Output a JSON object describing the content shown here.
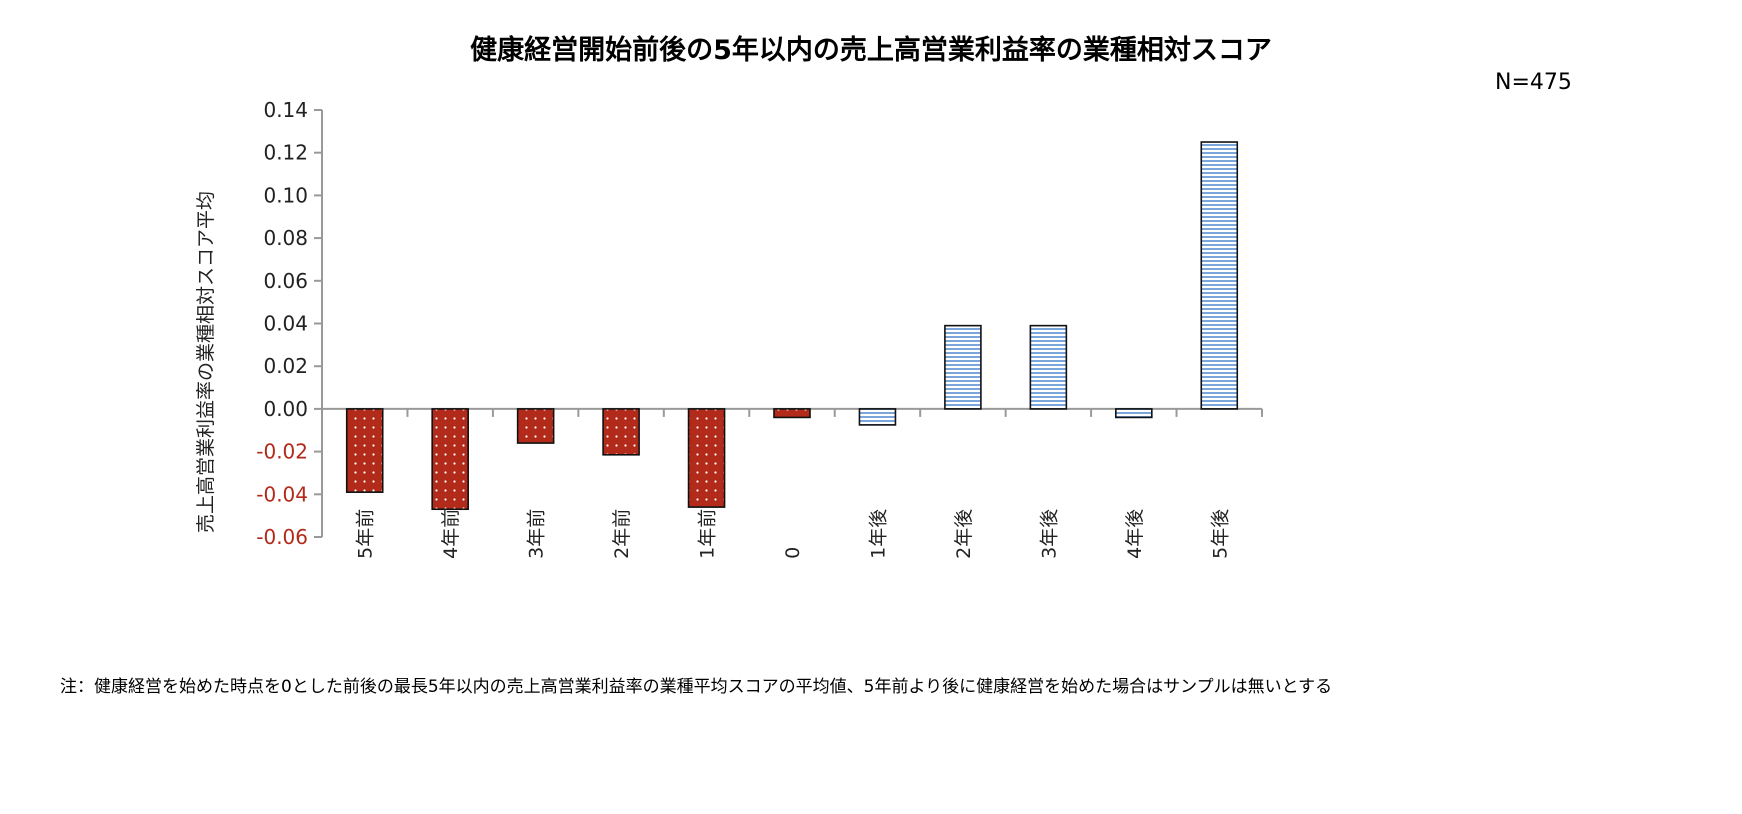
{
  "chart_data": {
    "type": "bar",
    "title": "健康経営開始前後の5年以内の売上高営業利益率の業種相対スコア",
    "annotation": "N=475",
    "ylabel": "売上高営業利益率の業種相対スコア平均",
    "xlabel": "",
    "ylim": [
      -0.06,
      0.14
    ],
    "yticks": [
      "0.14",
      "0.12",
      "0.10",
      "0.08",
      "0.06",
      "0.04",
      "0.02",
      "0.00",
      "-0.02",
      "-0.04",
      "-0.06"
    ],
    "categories": [
      "5年前",
      "4年前",
      "3年前",
      "2年前",
      "1年前",
      "0",
      "1年後",
      "2年後",
      "3年後",
      "4年後",
      "5年後"
    ],
    "values": [
      -0.039,
      -0.047,
      -0.016,
      -0.0215,
      -0.046,
      -0.004,
      -0.0075,
      0.039,
      0.039,
      -0.004,
      0.125
    ],
    "groups": [
      "before",
      "before",
      "before",
      "before",
      "before",
      "before",
      "after",
      "after",
      "after",
      "after",
      "after"
    ],
    "colors": {
      "before": "#b22a1a",
      "after": "#9dbfe8",
      "negative_tick": "#b22a1a",
      "positive_tick": "#222222"
    },
    "grid": false,
    "legend": "none",
    "note": "注：健康経営を始めた時点を0とした前後の最長5年以内の売上高営業利益率の業種平均スコアの平均値、5年前より後に健康経営を始めた場合はサンプルは無いとする"
  }
}
